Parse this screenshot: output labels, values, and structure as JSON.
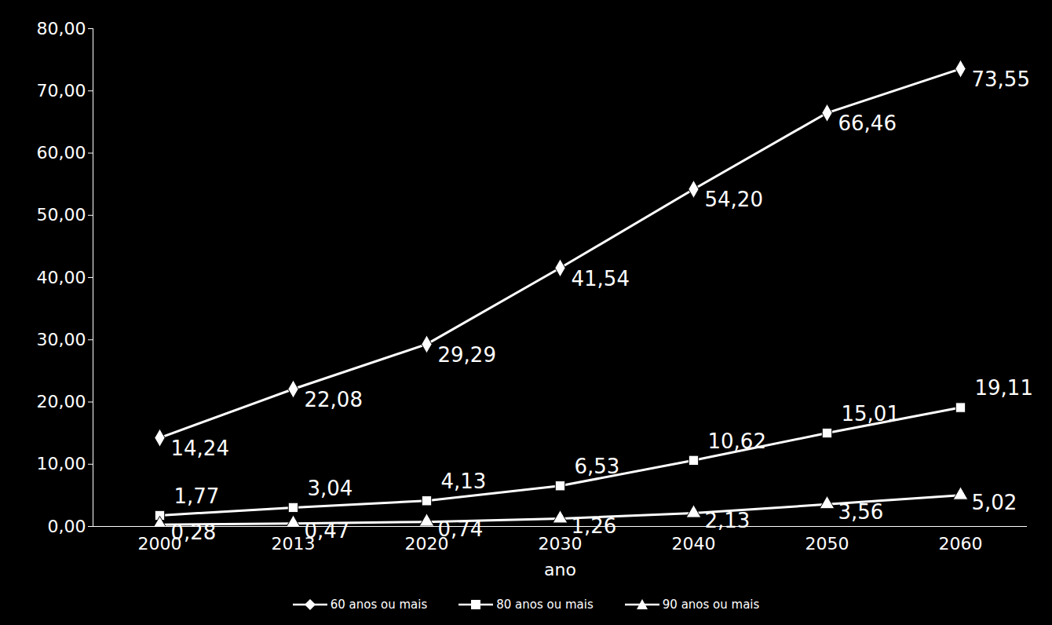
{
  "chart_data": {
    "type": "line",
    "x_label": "ano",
    "categories": [
      "2000",
      "2013",
      "2020",
      "2030",
      "2040",
      "2050",
      "2060"
    ],
    "ylim": [
      0,
      80
    ],
    "yticks": [
      {
        "value": 0,
        "label": "0,00"
      },
      {
        "value": 10,
        "label": "10,00"
      },
      {
        "value": 20,
        "label": "20,00"
      },
      {
        "value": 30,
        "label": "30,00"
      },
      {
        "value": 40,
        "label": "40,00"
      },
      {
        "value": 50,
        "label": "50,00"
      },
      {
        "value": 60,
        "label": "60,00"
      },
      {
        "value": 70,
        "label": "70,00"
      },
      {
        "value": 80,
        "label": "80,00"
      }
    ],
    "grid": false,
    "data_labels": true,
    "legend": "bottom",
    "series": [
      {
        "name": "60 anos ou mais",
        "color": "#ffffff",
        "marker": "diamond",
        "values": [
          14.24,
          22.08,
          29.29,
          41.54,
          54.2,
          66.46,
          73.55
        ],
        "value_labels": [
          "14,24",
          "22,08",
          "29,29",
          "41,54",
          "54,20",
          "66,46",
          "73,55"
        ]
      },
      {
        "name": "80 anos ou mais",
        "color": "#ffffff",
        "marker": "square",
        "values": [
          1.77,
          3.04,
          4.13,
          6.53,
          10.62,
          15.01,
          19.11
        ],
        "value_labels": [
          "1,77",
          "3,04",
          "4,13",
          "6,53",
          "10,62",
          "15,01",
          "19,11"
        ]
      },
      {
        "name": "90 anos ou mais",
        "color": "#ffffff",
        "marker": "triangle",
        "values": [
          0.28,
          0.47,
          0.74,
          1.26,
          2.13,
          3.56,
          5.02
        ],
        "value_labels": [
          "0,28",
          "0,47",
          "0,74",
          "1,26",
          "2,13",
          "3,56",
          "5,02"
        ]
      }
    ]
  }
}
